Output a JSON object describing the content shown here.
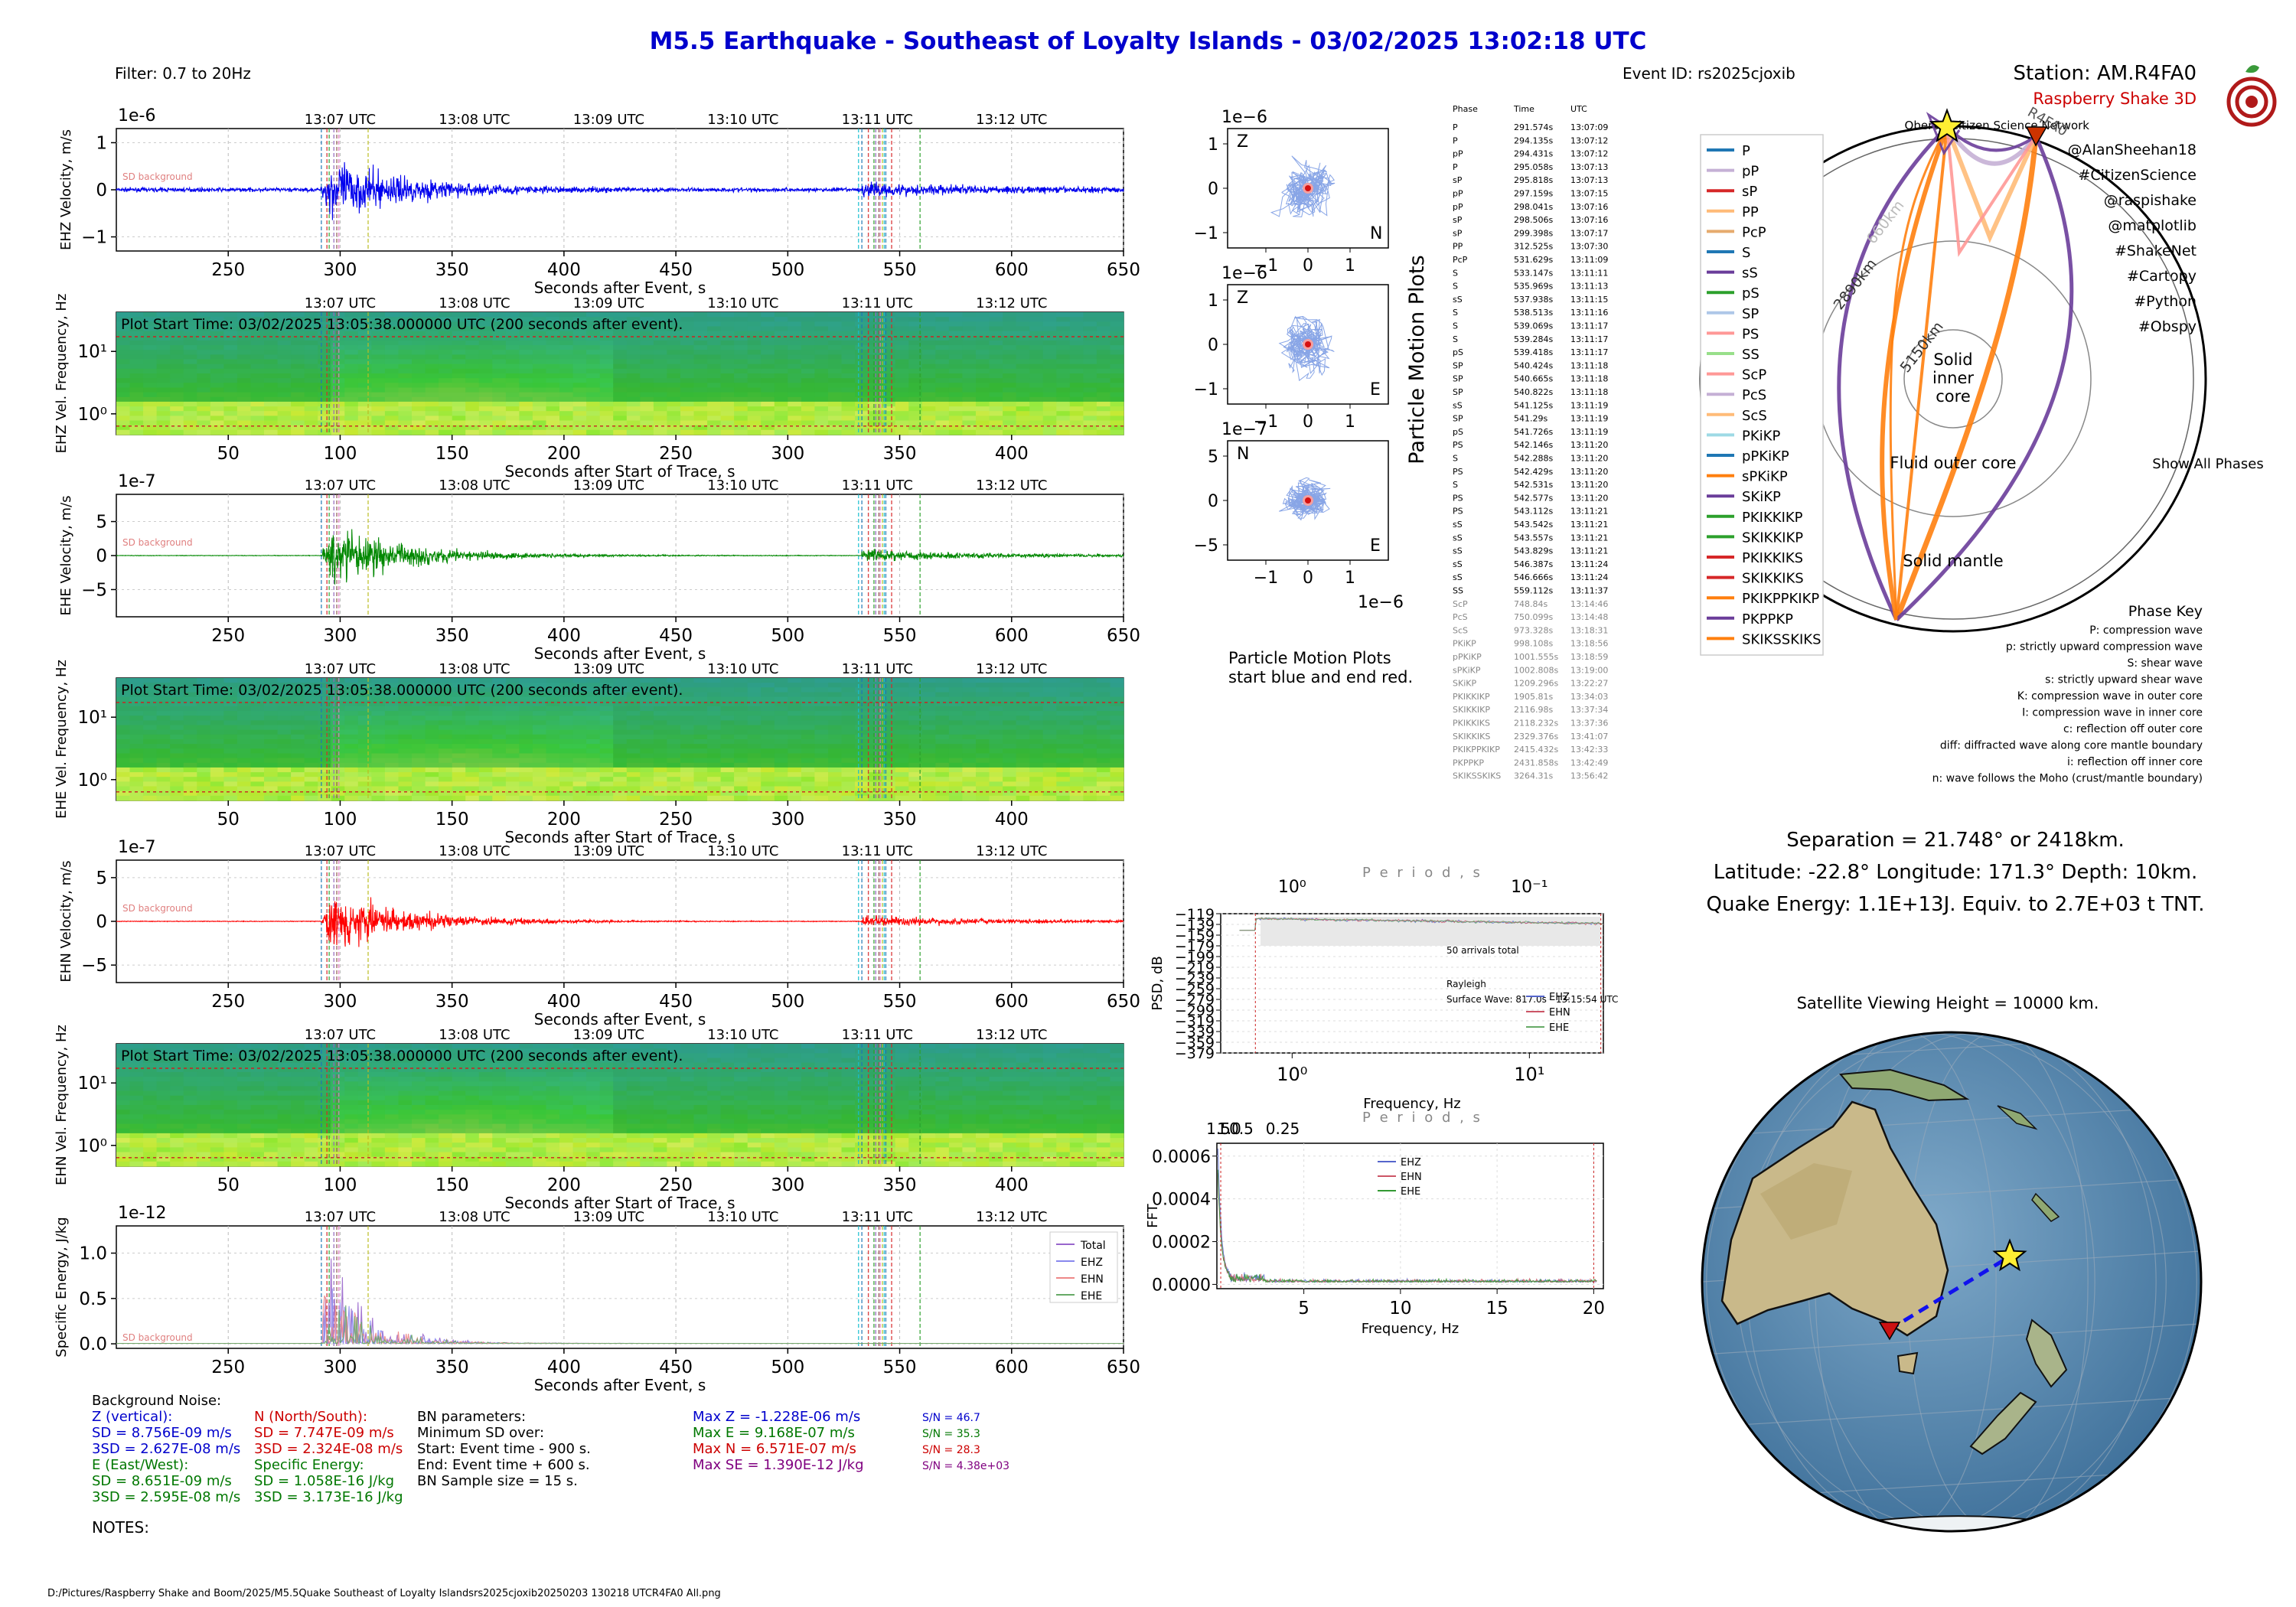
{
  "header": {
    "title": "M5.5 Earthquake - Southeast of Loyalty Islands -  03/02/2025 13:02:18 UTC",
    "filter": "Filter: 0.7 to 20Hz",
    "event_id": "Event ID: rs2025cjoxib",
    "station": "Station: AM.R4FA0",
    "device": "Raspberry Shake 3D",
    "network": "Oberon Citizen Science Network",
    "credits": [
      "@AlanSheehan18",
      "#CitizenScience",
      "@raspishake",
      "@matplotlib",
      "#ShakeNet",
      "#Cartopy",
      "#Python",
      "#Obspy"
    ]
  },
  "colors": {
    "title": "#0000cc",
    "ehz": "#0000ee",
    "ehe": "#008800",
    "ehn": "#ff0000",
    "energy": "#9966cc",
    "brand": "#cc0000"
  },
  "panels": {
    "utc_ticks": [
      "13:07 UTC",
      "13:08 UTC",
      "13:09 UTC",
      "13:10 UTC",
      "13:11 UTC",
      "13:12 UTC"
    ],
    "utc_values": [
      300,
      360,
      420,
      480,
      540,
      600
    ],
    "wave_xticks": [
      250,
      300,
      350,
      400,
      450,
      500,
      550,
      600,
      650
    ],
    "spec_xticks": [
      50,
      100,
      150,
      200,
      250,
      300,
      350,
      400
    ],
    "event_xlabel": "Seconds after Event, s",
    "trace_xlabel": "Seconds after Start of Trace, s",
    "plot_start": "Plot Start Time:  03/02/2025 13:05:38.000000 UTC (200 seconds after event).",
    "sd_note": "SD background",
    "wave_ehz": {
      "exp": "1e-6",
      "ylabel": "EHZ Velocity, m/s",
      "yticks": [
        "1",
        "0",
        "−1"
      ],
      "ylim": [
        -1.3,
        1.3
      ]
    },
    "spec_ehz": {
      "ylabel": "EHZ Vel. Frequency, Hz",
      "yticks": [
        "10¹",
        "10⁰"
      ]
    },
    "wave_ehe": {
      "exp": "1e-7",
      "ylabel": "EHE Velocity, m/s",
      "yticks": [
        "5",
        "0",
        "−5"
      ],
      "ylim": [
        -9,
        9
      ]
    },
    "spec_ehe": {
      "ylabel": "EHE Vel. Frequency, Hz",
      "yticks": [
        "10¹",
        "10⁰"
      ]
    },
    "wave_ehn": {
      "exp": "1e-7",
      "ylabel": "EHN Velocity, m/s",
      "yticks": [
        "5",
        "0",
        "−5"
      ],
      "ylim": [
        -7,
        7
      ]
    },
    "spec_ehn": {
      "ylabel": "EHN Vel. Frequency, Hz",
      "yticks": [
        "10¹",
        "10⁰"
      ]
    },
    "energy": {
      "exp": "1e-12",
      "ylabel": "Specific Energy, J/kg",
      "yticks": [
        "1.0",
        "0.5",
        "0.0"
      ],
      "ytick_values": [
        1.0,
        0.5,
        0.0
      ],
      "ylim": [
        -0.05,
        1.3
      ],
      "legend": [
        "Total",
        "EHZ",
        "EHN",
        "EHE"
      ]
    }
  },
  "particle": {
    "title": "Particle Motion Plots",
    "note1": "Particle Motion Plots",
    "note2": "start blue and end red.",
    "plots": [
      {
        "exp": "1e−6",
        "tl": "Z",
        "br": "N",
        "yticks": [
          "1",
          "0",
          "−1"
        ],
        "xticks": [
          "−1",
          "0",
          "1"
        ],
        "xexp": "1e−6"
      },
      {
        "exp": "1e−6",
        "tl": "Z",
        "br": "E",
        "yticks": [
          "1",
          "0",
          "−1"
        ],
        "xticks": [
          "−1",
          "0",
          "1"
        ],
        "xexp": "1e−6"
      },
      {
        "exp": "1e−7",
        "tl": "N",
        "br": "E",
        "yticks": [
          "5",
          "0",
          "−5"
        ],
        "xticks": [
          "−1",
          "0",
          "1"
        ],
        "xexp": "1e−6"
      }
    ]
  },
  "phase_table": {
    "headers": [
      "Phase",
      "Time",
      "UTC"
    ],
    "rows": [
      [
        "P",
        "291.574s",
        "13:07:09"
      ],
      [
        "P",
        "294.135s",
        "13:07:12"
      ],
      [
        "pP",
        "294.431s",
        "13:07:12"
      ],
      [
        "P",
        "295.058s",
        "13:07:13"
      ],
      [
        "sP",
        "295.818s",
        "13:07:13"
      ],
      [
        "pP",
        "297.159s",
        "13:07:15"
      ],
      [
        "pP",
        "298.041s",
        "13:07:16"
      ],
      [
        "sP",
        "298.506s",
        "13:07:16"
      ],
      [
        "sP",
        "299.398s",
        "13:07:17"
      ],
      [
        "PP",
        "312.525s",
        "13:07:30"
      ],
      [
        "PcP",
        "531.629s",
        "13:11:09"
      ],
      [
        "S",
        "533.147s",
        "13:11:11"
      ],
      [
        "S",
        "535.969s",
        "13:11:13"
      ],
      [
        "sS",
        "537.938s",
        "13:11:15"
      ],
      [
        "S",
        "538.513s",
        "13:11:16"
      ],
      [
        "S",
        "539.069s",
        "13:11:17"
      ],
      [
        "S",
        "539.284s",
        "13:11:17"
      ],
      [
        "pS",
        "539.418s",
        "13:11:17"
      ],
      [
        "SP",
        "540.424s",
        "13:11:18"
      ],
      [
        "SP",
        "540.665s",
        "13:11:18"
      ],
      [
        "SP",
        "540.822s",
        "13:11:18"
      ],
      [
        "sS",
        "541.125s",
        "13:11:19"
      ],
      [
        "SP",
        "541.29s",
        "13:11:19"
      ],
      [
        "pS",
        "541.726s",
        "13:11:19"
      ],
      [
        "PS",
        "542.146s",
        "13:11:20"
      ],
      [
        "S",
        "542.288s",
        "13:11:20"
      ],
      [
        "PS",
        "542.429s",
        "13:11:20"
      ],
      [
        "S",
        "542.531s",
        "13:11:20"
      ],
      [
        "PS",
        "542.577s",
        "13:11:20"
      ],
      [
        "PS",
        "543.112s",
        "13:11:21"
      ],
      [
        "sS",
        "543.542s",
        "13:11:21"
      ],
      [
        "sS",
        "543.557s",
        "13:11:21"
      ],
      [
        "sS",
        "543.829s",
        "13:11:21"
      ],
      [
        "sS",
        "546.387s",
        "13:11:24"
      ],
      [
        "sS",
        "546.666s",
        "13:11:24"
      ],
      [
        "SS",
        "559.112s",
        "13:11:37"
      ],
      [
        "ScP",
        "748.84s",
        "13:14:46"
      ],
      [
        "PcS",
        "750.099s",
        "13:14:48"
      ],
      [
        "ScS",
        "973.328s",
        "13:18:31"
      ],
      [
        "PKiKP",
        "998.108s",
        "13:18:56"
      ],
      [
        "pPKiKP",
        "1001.555s",
        "13:18:59"
      ],
      [
        "sPKiKP",
        "1002.808s",
        "13:19:00"
      ],
      [
        "SKiKP",
        "1209.296s",
        "13:22:27"
      ],
      [
        "PKIKKIKP",
        "1905.81s",
        "13:34:03"
      ],
      [
        "SKIKKIKP",
        "2116.98s",
        "13:37:34"
      ],
      [
        "PKIKKIKS",
        "2118.232s",
        "13:37:36"
      ],
      [
        "SKIKKIKS",
        "2329.376s",
        "13:41:07"
      ],
      [
        "PKIKPPKIKP",
        "2415.432s",
        "13:42:33"
      ],
      [
        "PKPPKP",
        "2431.858s",
        "13:42:49"
      ],
      [
        "SKIKSSKIKS",
        "3264.31s",
        "13:56:42"
      ]
    ],
    "gray_from": 36
  },
  "psd": {
    "period_label": "P e r i o d ,   s",
    "ylabel": "PSD, dB",
    "xlabel": "Frequency, Hz",
    "yticks": [
      "−119",
      "−139",
      "−159",
      "−179",
      "−199",
      "−219",
      "−239",
      "−259",
      "−279",
      "−299",
      "−319",
      "−339",
      "−359",
      "−379"
    ],
    "ytick_values": [
      -119,
      -139,
      -159,
      -179,
      -199,
      -219,
      -239,
      -259,
      -279,
      -299,
      -319,
      -339,
      -359,
      -379
    ],
    "top_ticks": [
      "10⁰",
      "10⁻¹"
    ],
    "top_tick_periods": [
      1,
      0.1
    ],
    "bottom_ticks": [
      "10⁰",
      "10¹"
    ],
    "bottom_tick_freqs": [
      1,
      10
    ],
    "xlim": [
      0.5,
      20.5
    ],
    "arrivals": "50 arrivals total",
    "rayleigh": "Rayleigh",
    "surface": "Surface Wave: 817.0s - 13:15:54 UTC",
    "legend": [
      "EHZ",
      "EHN",
      "EHE"
    ]
  },
  "fft": {
    "period_label": "P e r i o d ,   s",
    "ylabel": "FFT",
    "xlabel": "Frequency, Hz",
    "yticks": [
      "0.0006",
      "0.0004",
      "0.0002",
      "0.0000"
    ],
    "ytick_values": [
      0.0006,
      0.0004,
      0.0002,
      0.0
    ],
    "xticks": [
      "5",
      "10",
      "15",
      "20"
    ],
    "xtick_values": [
      5,
      10,
      15,
      20
    ],
    "xlim": [
      0.5,
      20.5
    ],
    "ylim": [
      -2e-05,
      0.00066
    ],
    "top_labels": [
      "1.5",
      "1.0",
      "0.5",
      "0.25"
    ],
    "legend": [
      "EHZ",
      "EHN",
      "EHE"
    ]
  },
  "earth": {
    "labels": [
      "Solid",
      "inner",
      "core",
      "Fluid outer core",
      "Solid mantle"
    ],
    "radii": [
      "5150km",
      "2890km",
      "660km"
    ],
    "show_all": "Show All Phases",
    "station_tag": "R4FA0",
    "legend": [
      "P",
      "pP",
      "sP",
      "PP",
      "PcP",
      "S",
      "sS",
      "pS",
      "SP",
      "PS",
      "SS",
      "ScP",
      "PcS",
      "ScS",
      "PKiKP",
      "pPKiKP",
      "sPKiKP",
      "SKiKP",
      "PKIKKIKP",
      "SKIKKIKP",
      "PKIKKIKS",
      "SKIKKIKS",
      "PKIKPPKIKP",
      "PKPPKP",
      "SKIKSSKIKS"
    ],
    "legend_colors": [
      "#1f77b4",
      "#c5b0d5",
      "#d62728",
      "#ffbb78",
      "#e6ab6e",
      "#1f77b4",
      "#6a3d9a",
      "#2ca02c",
      "#aec7e8",
      "#ff9896",
      "#98df8a",
      "#ff9896",
      "#c5b0d5",
      "#ffbb78",
      "#9edae5",
      "#1f77b4",
      "#ff7f0e",
      "#6a3d9a",
      "#2ca02c",
      "#2ca02c",
      "#d62728",
      "#d62728",
      "#ff7f0e",
      "#6a3d9a",
      "#ff7f0e"
    ]
  },
  "phase_key": {
    "title": "Phase Key",
    "lines": [
      "P:    compression wave",
      "p:    strictly upward compression wave",
      "S:    shear wave",
      "s:    strictly upward shear wave",
      "K:    compression wave in outer core",
      "I:    compression wave in inner core",
      "c:    reflection off outer core",
      "diff:   diffracted wave along core mantle boundary",
      "i:    reflection off inner core",
      "n:    wave follows the Moho (crust/mantle boundary)"
    ]
  },
  "summary": {
    "separation": "Separation = 21.748° or 2418km.",
    "location": "Latitude: -22.8° Longitude: 171.3° Depth: 10km.",
    "energy": "Quake Energy: 1.1E+13J. Equiv. to 2.7E+03 t TNT."
  },
  "map": {
    "title": "Satellite Viewing Height = 10000 km."
  },
  "stats": {
    "bn_title": "Background Noise:",
    "z_label": "Z (vertical):",
    "z_sd": "SD = 8.756E-09 m/s",
    "z_3sd": "3SD = 2.627E-08 m/s",
    "e_label": "E (East/West):",
    "e_sd": "SD = 8.651E-09 m/s",
    "e_3sd": "3SD = 2.595E-08 m/s",
    "n_label": "N (North/South):",
    "n_sd": "SD = 7.747E-09 m/s",
    "n_3sd": "3SD = 2.324E-08 m/s",
    "se_label": "Specific Energy:",
    "se_sd": "SD = 1.058E-16 J/kg",
    "se_3sd": "3SD = 3.173E-16 J/kg",
    "bn_params": "BN parameters:",
    "bn_min": "Minimum SD over:",
    "bn_start": "Start: Event time - 900 s.",
    "bn_end": "End: Event time + 600 s.",
    "bn_sample": "BN Sample size = 15 s.",
    "max_z": "Max Z = -1.228E-06 m/s",
    "max_e": "Max E = 9.168E-07 m/s",
    "max_n": "Max N = 6.571E-07 m/s",
    "max_se": "Max SE = 1.390E-12 J/kg",
    "sn_z": "S/N = 46.7",
    "sn_e": "S/N = 35.3",
    "sn_n": "S/N = 28.3",
    "sn_se": "S/N = 4.38e+03",
    "notes": "NOTES:",
    "filepath": "D:/Pictures/Raspberry Shake and Boom/2025/M5.5Quake Southeast of Loyalty Islandsrs2025cjoxib20250203 130218 UTCR4FA0 All.png"
  },
  "chart_data": [
    {
      "type": "line",
      "name": "EHZ velocity",
      "x_range": [
        200,
        650
      ],
      "ylim": [
        -1.3,
        1.3
      ],
      "units": "1e-6 m/s",
      "p_arrival": 291.574,
      "s_arrival": 533.147,
      "peak": -1.228
    },
    {
      "type": "heatmap",
      "name": "EHZ spectrogram",
      "x_range": [
        0,
        450
      ],
      "y_range_hz": [
        0.7,
        50
      ]
    },
    {
      "type": "line",
      "name": "EHE velocity",
      "x_range": [
        200,
        650
      ],
      "ylim": [
        -9,
        9
      ],
      "units": "1e-7 m/s",
      "peak": 9.168
    },
    {
      "type": "heatmap",
      "name": "EHE spectrogram",
      "x_range": [
        0,
        450
      ],
      "y_range_hz": [
        0.7,
        50
      ]
    },
    {
      "type": "line",
      "name": "EHN velocity",
      "x_range": [
        200,
        650
      ],
      "ylim": [
        -7,
        7
      ],
      "units": "1e-7 m/s",
      "peak": 6.571
    },
    {
      "type": "heatmap",
      "name": "EHN spectrogram",
      "x_range": [
        0,
        450
      ],
      "y_range_hz": [
        0.7,
        50
      ]
    },
    {
      "type": "line",
      "name": "Specific energy",
      "x_range": [
        200,
        650
      ],
      "ylim": [
        -0.05,
        1.3
      ],
      "units": "1e-12 J/kg",
      "peak": 1.39
    },
    {
      "type": "scatter",
      "name": "Particle motion",
      "plots": [
        "Z-N",
        "Z-E",
        "N-E"
      ]
    },
    {
      "type": "line",
      "name": "PSD",
      "xlim_hz": [
        0.5,
        20.5
      ],
      "ylim_db": [
        -379,
        -119
      ]
    },
    {
      "type": "line",
      "name": "FFT",
      "xlim_hz": [
        0.5,
        20.5
      ],
      "ylim": [
        0,
        0.00066
      ]
    }
  ]
}
